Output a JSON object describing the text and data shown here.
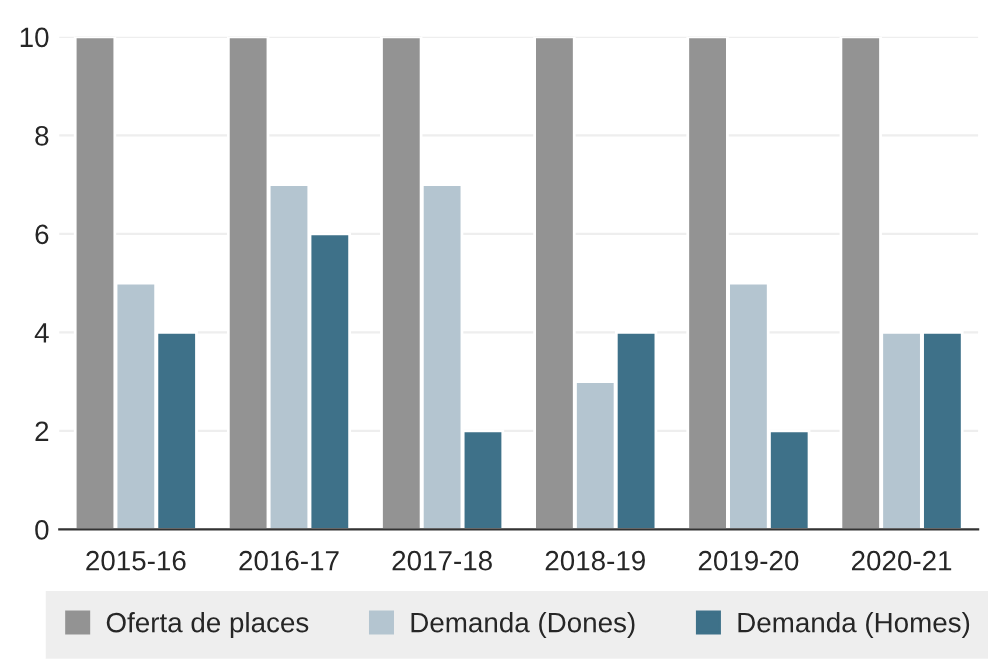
{
  "chart_data": {
    "type": "bar",
    "categories": [
      "2015-16",
      "2016-17",
      "2017-18",
      "2018-19",
      "2019-20",
      "2020-21"
    ],
    "series": [
      {
        "name": "Oferta de places",
        "color": "#939393",
        "values": [
          10,
          10,
          10,
          10,
          10,
          10
        ]
      },
      {
        "name": "Demanda (Dones)",
        "color": "#b4c5d0",
        "values": [
          5,
          7,
          7,
          3,
          5,
          4
        ]
      },
      {
        "name": "Demanda (Homes)",
        "color": "#3e7189",
        "values": [
          4,
          6,
          2,
          4,
          2,
          4
        ]
      }
    ],
    "ylim": [
      0,
      10
    ],
    "yticks": [
      0,
      2,
      4,
      6,
      8,
      10
    ],
    "grid": "y",
    "legend": "bottom"
  }
}
